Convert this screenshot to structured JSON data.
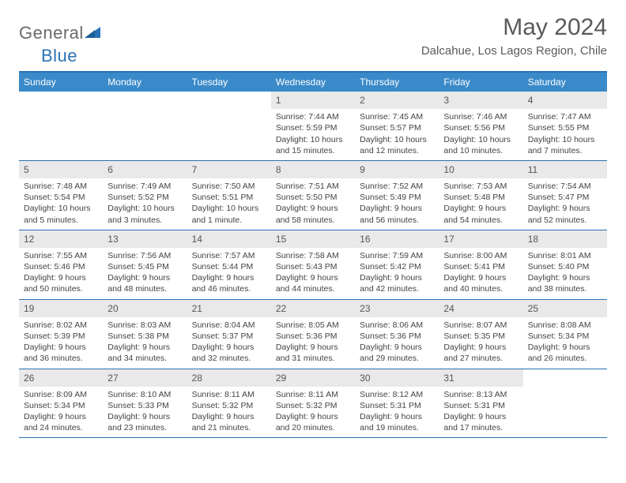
{
  "logo": {
    "text_a": "General",
    "text_b": "Blue"
  },
  "header": {
    "title": "May 2024",
    "location": "Dalcahue, Los Lagos Region, Chile"
  },
  "colors": {
    "header_bar": "#3a8ac9",
    "rule": "#2a72b5",
    "daynum_bg": "#e9e9e9",
    "text": "#444444"
  },
  "day_labels": [
    "Sunday",
    "Monday",
    "Tuesday",
    "Wednesday",
    "Thursday",
    "Friday",
    "Saturday"
  ],
  "weeks": [
    [
      {
        "blank": true
      },
      {
        "blank": true
      },
      {
        "blank": true
      },
      {
        "n": "1",
        "sr": "Sunrise: 7:44 AM",
        "ss": "Sunset: 5:59 PM",
        "dl": "Daylight: 10 hours and 15 minutes."
      },
      {
        "n": "2",
        "sr": "Sunrise: 7:45 AM",
        "ss": "Sunset: 5:57 PM",
        "dl": "Daylight: 10 hours and 12 minutes."
      },
      {
        "n": "3",
        "sr": "Sunrise: 7:46 AM",
        "ss": "Sunset: 5:56 PM",
        "dl": "Daylight: 10 hours and 10 minutes."
      },
      {
        "n": "4",
        "sr": "Sunrise: 7:47 AM",
        "ss": "Sunset: 5:55 PM",
        "dl": "Daylight: 10 hours and 7 minutes."
      }
    ],
    [
      {
        "n": "5",
        "sr": "Sunrise: 7:48 AM",
        "ss": "Sunset: 5:54 PM",
        "dl": "Daylight: 10 hours and 5 minutes."
      },
      {
        "n": "6",
        "sr": "Sunrise: 7:49 AM",
        "ss": "Sunset: 5:52 PM",
        "dl": "Daylight: 10 hours and 3 minutes."
      },
      {
        "n": "7",
        "sr": "Sunrise: 7:50 AM",
        "ss": "Sunset: 5:51 PM",
        "dl": "Daylight: 10 hours and 1 minute."
      },
      {
        "n": "8",
        "sr": "Sunrise: 7:51 AM",
        "ss": "Sunset: 5:50 PM",
        "dl": "Daylight: 9 hours and 58 minutes."
      },
      {
        "n": "9",
        "sr": "Sunrise: 7:52 AM",
        "ss": "Sunset: 5:49 PM",
        "dl": "Daylight: 9 hours and 56 minutes."
      },
      {
        "n": "10",
        "sr": "Sunrise: 7:53 AM",
        "ss": "Sunset: 5:48 PM",
        "dl": "Daylight: 9 hours and 54 minutes."
      },
      {
        "n": "11",
        "sr": "Sunrise: 7:54 AM",
        "ss": "Sunset: 5:47 PM",
        "dl": "Daylight: 9 hours and 52 minutes."
      }
    ],
    [
      {
        "n": "12",
        "sr": "Sunrise: 7:55 AM",
        "ss": "Sunset: 5:46 PM",
        "dl": "Daylight: 9 hours and 50 minutes."
      },
      {
        "n": "13",
        "sr": "Sunrise: 7:56 AM",
        "ss": "Sunset: 5:45 PM",
        "dl": "Daylight: 9 hours and 48 minutes."
      },
      {
        "n": "14",
        "sr": "Sunrise: 7:57 AM",
        "ss": "Sunset: 5:44 PM",
        "dl": "Daylight: 9 hours and 46 minutes."
      },
      {
        "n": "15",
        "sr": "Sunrise: 7:58 AM",
        "ss": "Sunset: 5:43 PM",
        "dl": "Daylight: 9 hours and 44 minutes."
      },
      {
        "n": "16",
        "sr": "Sunrise: 7:59 AM",
        "ss": "Sunset: 5:42 PM",
        "dl": "Daylight: 9 hours and 42 minutes."
      },
      {
        "n": "17",
        "sr": "Sunrise: 8:00 AM",
        "ss": "Sunset: 5:41 PM",
        "dl": "Daylight: 9 hours and 40 minutes."
      },
      {
        "n": "18",
        "sr": "Sunrise: 8:01 AM",
        "ss": "Sunset: 5:40 PM",
        "dl": "Daylight: 9 hours and 38 minutes."
      }
    ],
    [
      {
        "n": "19",
        "sr": "Sunrise: 8:02 AM",
        "ss": "Sunset: 5:39 PM",
        "dl": "Daylight: 9 hours and 36 minutes."
      },
      {
        "n": "20",
        "sr": "Sunrise: 8:03 AM",
        "ss": "Sunset: 5:38 PM",
        "dl": "Daylight: 9 hours and 34 minutes."
      },
      {
        "n": "21",
        "sr": "Sunrise: 8:04 AM",
        "ss": "Sunset: 5:37 PM",
        "dl": "Daylight: 9 hours and 32 minutes."
      },
      {
        "n": "22",
        "sr": "Sunrise: 8:05 AM",
        "ss": "Sunset: 5:36 PM",
        "dl": "Daylight: 9 hours and 31 minutes."
      },
      {
        "n": "23",
        "sr": "Sunrise: 8:06 AM",
        "ss": "Sunset: 5:36 PM",
        "dl": "Daylight: 9 hours and 29 minutes."
      },
      {
        "n": "24",
        "sr": "Sunrise: 8:07 AM",
        "ss": "Sunset: 5:35 PM",
        "dl": "Daylight: 9 hours and 27 minutes."
      },
      {
        "n": "25",
        "sr": "Sunrise: 8:08 AM",
        "ss": "Sunset: 5:34 PM",
        "dl": "Daylight: 9 hours and 26 minutes."
      }
    ],
    [
      {
        "n": "26",
        "sr": "Sunrise: 8:09 AM",
        "ss": "Sunset: 5:34 PM",
        "dl": "Daylight: 9 hours and 24 minutes."
      },
      {
        "n": "27",
        "sr": "Sunrise: 8:10 AM",
        "ss": "Sunset: 5:33 PM",
        "dl": "Daylight: 9 hours and 23 minutes."
      },
      {
        "n": "28",
        "sr": "Sunrise: 8:11 AM",
        "ss": "Sunset: 5:32 PM",
        "dl": "Daylight: 9 hours and 21 minutes."
      },
      {
        "n": "29",
        "sr": "Sunrise: 8:11 AM",
        "ss": "Sunset: 5:32 PM",
        "dl": "Daylight: 9 hours and 20 minutes."
      },
      {
        "n": "30",
        "sr": "Sunrise: 8:12 AM",
        "ss": "Sunset: 5:31 PM",
        "dl": "Daylight: 9 hours and 19 minutes."
      },
      {
        "n": "31",
        "sr": "Sunrise: 8:13 AM",
        "ss": "Sunset: 5:31 PM",
        "dl": "Daylight: 9 hours and 17 minutes."
      },
      {
        "blank": true
      }
    ]
  ]
}
